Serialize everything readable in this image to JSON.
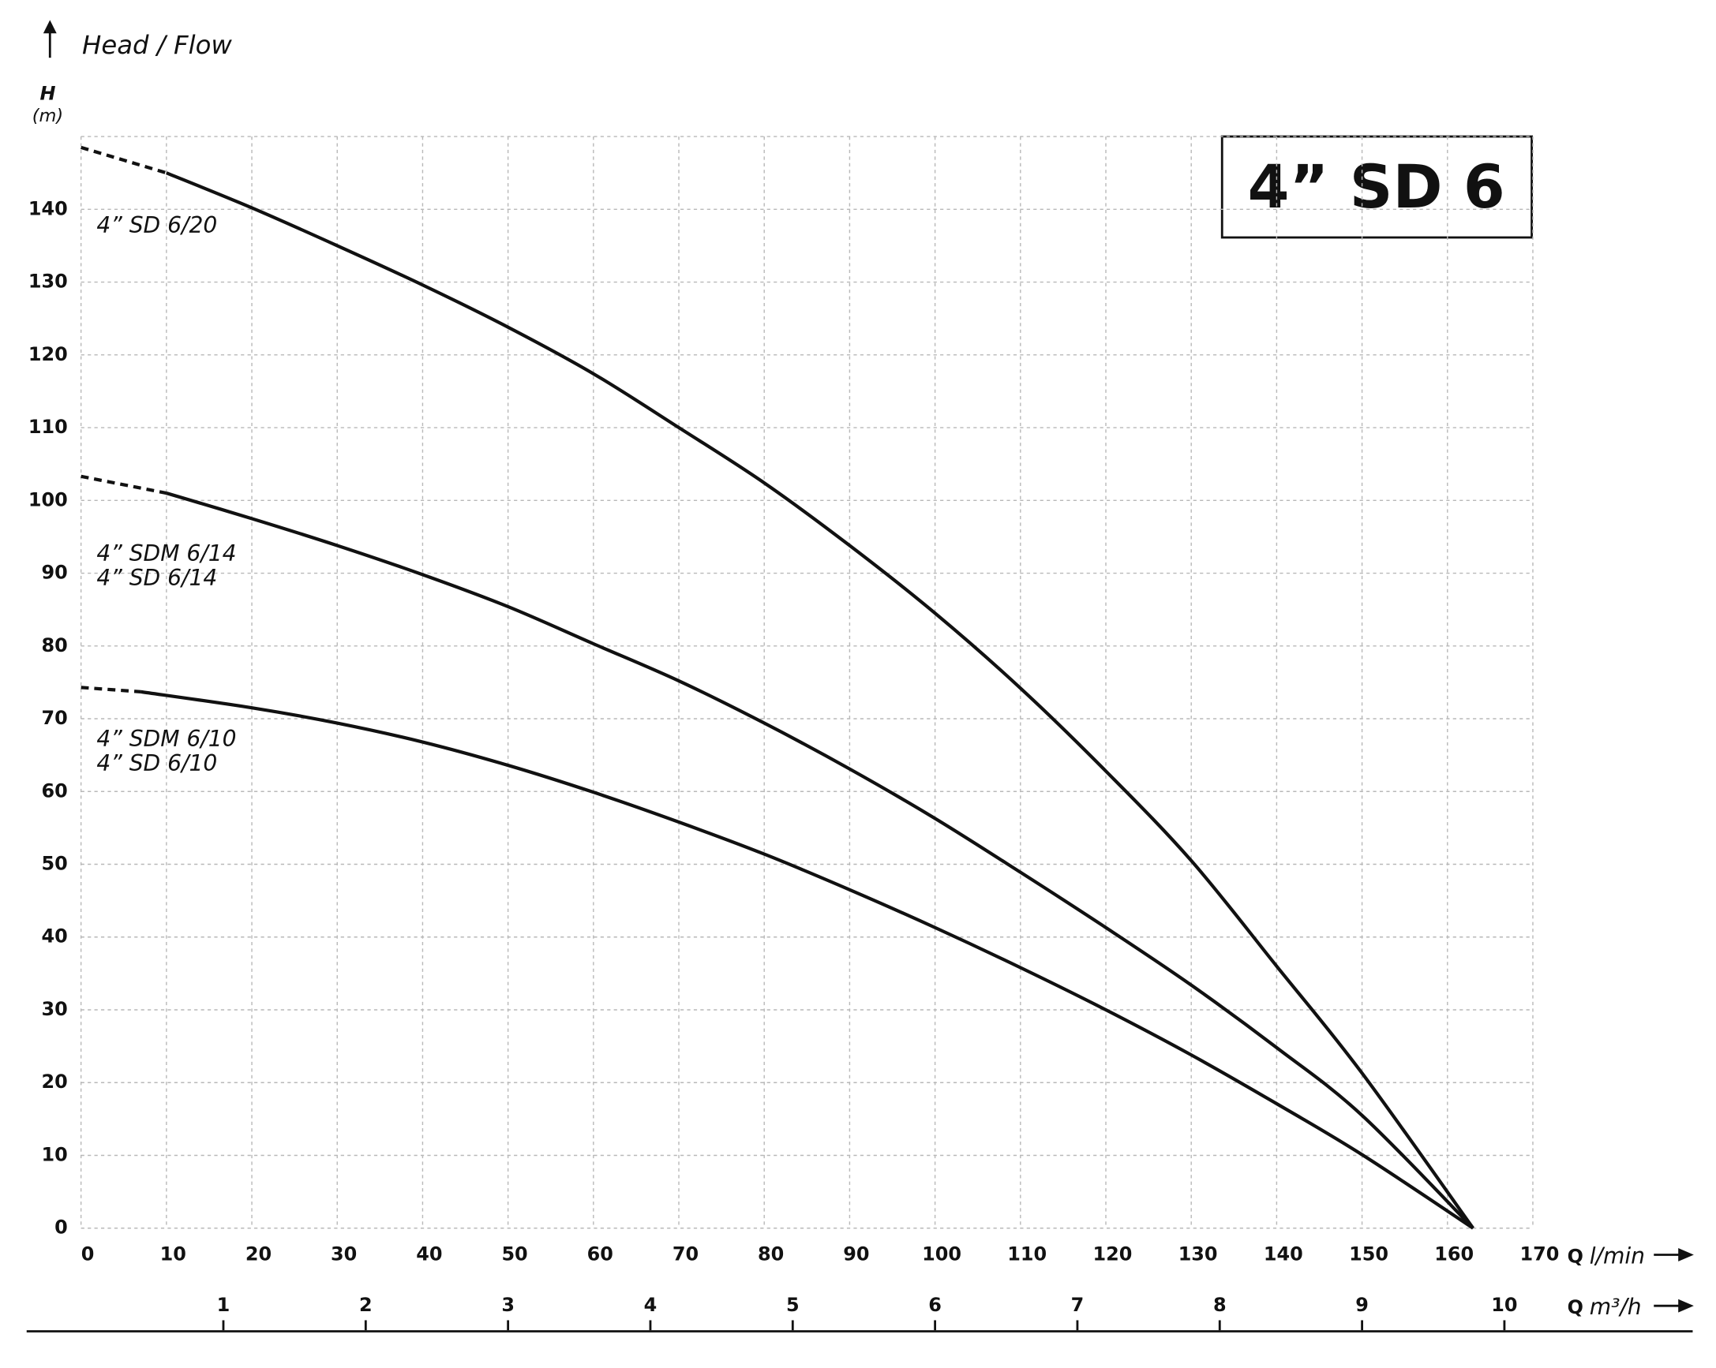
{
  "chart_data": {
    "type": "line",
    "title": "4” SD 6",
    "y_axis_title": "Head / Flow",
    "y_label": "H",
    "y_unit": "(m)",
    "x_label": "Q",
    "x_unit": "l/min",
    "x2_label": "Q",
    "x2_unit": "m³/h",
    "xlim": [
      0,
      170
    ],
    "xticks": [
      0,
      10,
      20,
      30,
      40,
      50,
      60,
      70,
      80,
      90,
      100,
      110,
      120,
      130,
      140,
      150,
      160,
      170
    ],
    "x2lim": [
      0,
      10.2
    ],
    "x2ticks": [
      1,
      2,
      3,
      4,
      5,
      6,
      7,
      8,
      9,
      10
    ],
    "ylim": [
      0,
      150
    ],
    "yticks": [
      0,
      10,
      20,
      30,
      40,
      50,
      60,
      70,
      80,
      90,
      100,
      110,
      120,
      130,
      140
    ],
    "grid": true,
    "series": [
      {
        "labels": [
          "4” SD 6/20"
        ],
        "color": "#111111",
        "x": [
          10,
          20,
          30,
          40,
          50,
          60,
          70,
          80,
          90,
          100,
          110,
          120,
          130,
          140,
          150,
          163
        ],
        "values": [
          145,
          140.2,
          135,
          129.6,
          123.8,
          117.4,
          110,
          102.4,
          93.8,
          84.5,
          74.2,
          62.8,
          50.5,
          36,
          21.3,
          0
        ],
        "extrapolated_x": [
          0,
          10
        ],
        "extrapolated_values": [
          148.5,
          145
        ]
      },
      {
        "labels": [
          "4” SDM 6/14",
          "4” SD 6/14"
        ],
        "color": "#111111",
        "x": [
          10,
          20,
          30,
          40,
          50,
          60,
          70,
          80,
          90,
          100,
          110,
          120,
          130,
          140,
          150,
          163
        ],
        "values": [
          101,
          97.5,
          93.8,
          89.8,
          85.4,
          80.3,
          75.2,
          69.4,
          63.1,
          56.3,
          48.9,
          41.3,
          33.4,
          24.8,
          15.5,
          0
        ],
        "extrapolated_x": [
          0,
          10
        ],
        "extrapolated_values": [
          103.3,
          101
        ]
      },
      {
        "labels": [
          "4” SDM 6/10",
          "4” SD 6/10"
        ],
        "color": "#111111",
        "x": [
          7,
          20,
          30,
          40,
          50,
          60,
          70,
          80,
          90,
          100,
          110,
          120,
          130,
          140,
          150,
          163
        ],
        "values": [
          73.7,
          71.5,
          69.4,
          66.8,
          63.6,
          59.9,
          55.8,
          51.4,
          46.5,
          41.3,
          35.8,
          30,
          23.8,
          17.1,
          10.1,
          0
        ],
        "extrapolated_x": [
          0,
          7
        ],
        "extrapolated_values": [
          74.3,
          73.7
        ]
      }
    ]
  }
}
